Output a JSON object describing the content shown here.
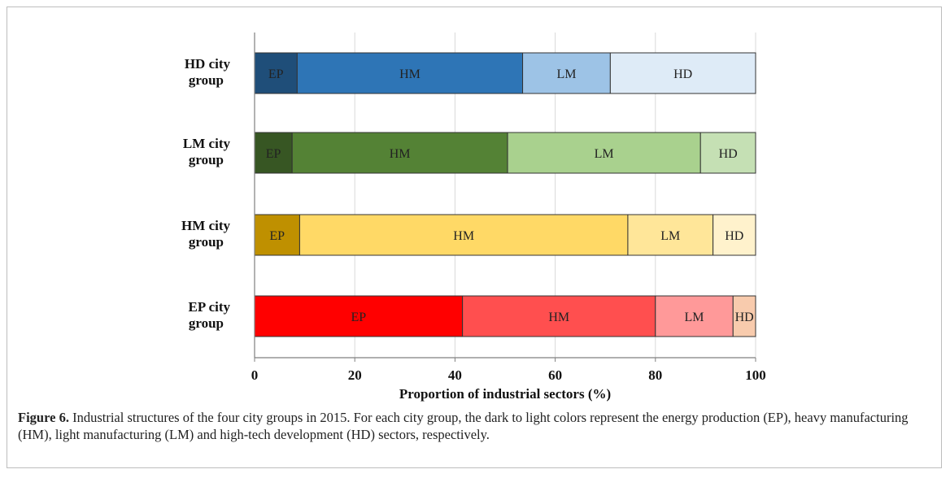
{
  "chart_data": {
    "type": "bar",
    "orientation": "horizontal",
    "stacked": true,
    "categories": [
      "HD city group",
      "LM city group",
      "HM city group",
      "EP city group"
    ],
    "category_label_lines": [
      [
        "HD city",
        "group"
      ],
      [
        "LM city",
        "group"
      ],
      [
        "HM city",
        "group"
      ],
      [
        "EP city",
        "group"
      ]
    ],
    "series": [
      {
        "name": "EP",
        "values": [
          8.5,
          7.5,
          9.0,
          41.5
        ]
      },
      {
        "name": "HM",
        "values": [
          45.0,
          43.0,
          65.5,
          38.5
        ]
      },
      {
        "name": "LM",
        "values": [
          17.5,
          38.5,
          17.0,
          15.5
        ]
      },
      {
        "name": "HD",
        "values": [
          29.0,
          11.0,
          8.5,
          4.5
        ]
      }
    ],
    "colors": [
      [
        "#1f4e79",
        "#2e75b6",
        "#9dc3e6",
        "#deebf7"
      ],
      [
        "#375623",
        "#548235",
        "#a9d18e",
        "#c5e0b4"
      ],
      [
        "#bf9000",
        "#ffd966",
        "#ffe699",
        "#fff2cc"
      ],
      [
        "#ff0000",
        "#ff4f4f",
        "#ff9999",
        "#f8cbad"
      ]
    ],
    "xlabel": "Proportion of industrial sectors (%)",
    "ylabel": "",
    "xlim": [
      0,
      100
    ],
    "xticks": [
      0,
      20,
      40,
      60,
      80,
      100
    ],
    "grid": "vertical"
  },
  "caption": {
    "label": "Figure 6.",
    "text": " Industrial structures of the four city groups in 2015. For each city group, the dark to light colors represent the energy production (EP), heavy manufacturing (HM), light manufacturing (LM) and high-tech development (HD) sectors, respectively."
  }
}
